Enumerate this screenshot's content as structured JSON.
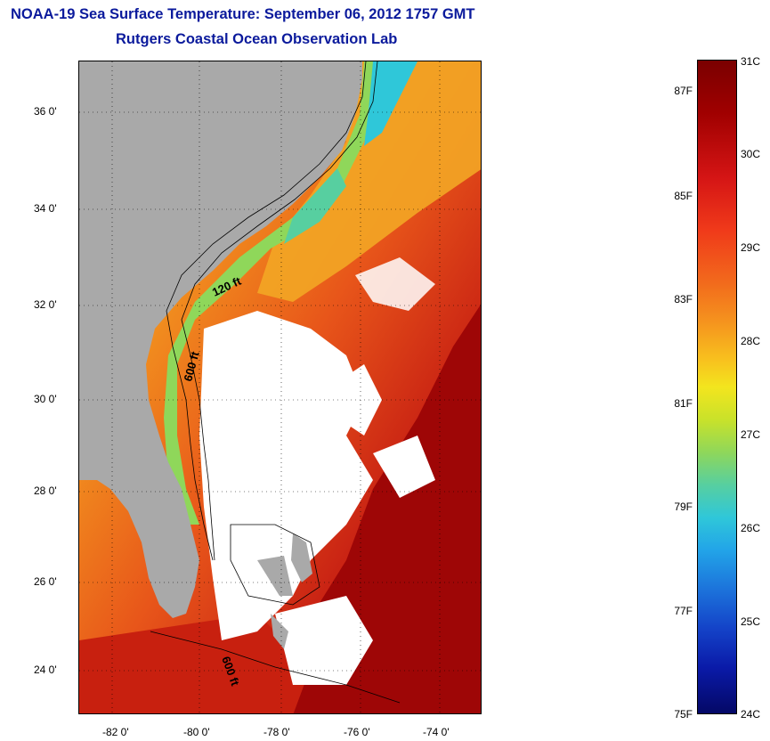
{
  "title_line1": "NOAA-19 Sea Surface Temperature:  September 06, 2012 1757 GMT",
  "title_line2": "Rutgers Coastal Ocean Observation Lab",
  "map": {
    "lat_labels": [
      "36 0'",
      "34 0'",
      "32 0'",
      "30 0'",
      "28 0'",
      "26 0'",
      "24 0'"
    ],
    "lon_labels": [
      "-82 0'",
      "-80 0'",
      "-78 0'",
      "-76 0'",
      "-74 0'"
    ],
    "contour_labels": [
      "120 ft",
      "600 ft",
      "600 ft"
    ],
    "colors": {
      "land": "#a9a9a9",
      "cloud": "#ffffff",
      "warm": "#b01010",
      "cool": "#2fc7d9"
    }
  },
  "colorbar": {
    "fahrenheit_labels": [
      "87F",
      "85F",
      "83F",
      "81F",
      "79F",
      "77F",
      "75F"
    ],
    "celsius_labels": [
      "31C",
      "30C",
      "29C",
      "28C",
      "27C",
      "26C",
      "25C",
      "24C"
    ],
    "range_c": [
      24,
      31
    ],
    "range_f": [
      75,
      88
    ]
  }
}
